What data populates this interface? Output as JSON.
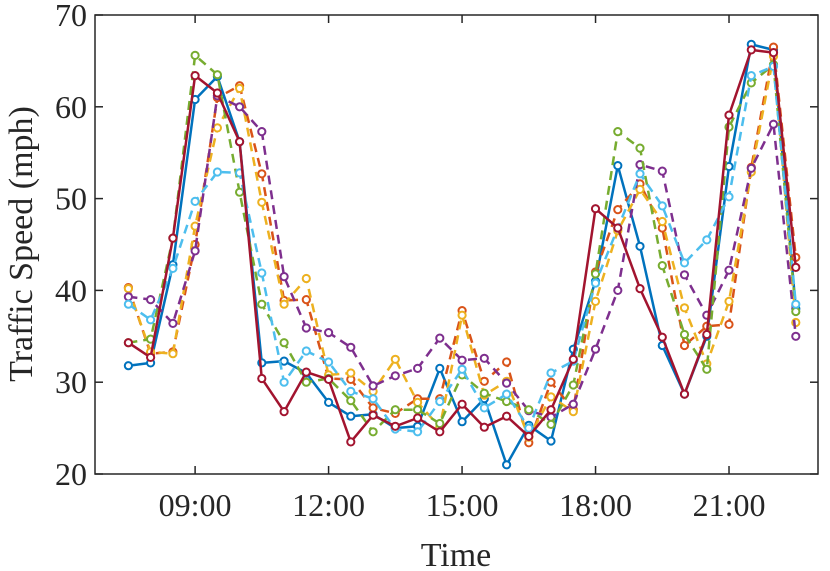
{
  "chart_data": {
    "type": "line",
    "title": "",
    "xlabel": "Time",
    "ylabel": "Traffic Speed (mph)",
    "x": [
      7.5,
      8.0,
      8.5,
      9.0,
      9.5,
      10.0,
      10.5,
      11.0,
      11.5,
      12.0,
      12.5,
      13.0,
      13.5,
      14.0,
      14.5,
      15.0,
      15.5,
      16.0,
      16.5,
      17.0,
      17.5,
      18.0,
      18.5,
      19.0,
      19.5,
      20.0,
      20.5,
      21.0,
      21.5,
      22.0,
      22.5
    ],
    "xlim": [
      6.75,
      23.0
    ],
    "ylim": [
      20,
      70
    ],
    "x_ticks": [
      9,
      12,
      15,
      18,
      21
    ],
    "x_tick_labels": [
      "09:00",
      "12:00",
      "15:00",
      "18:00",
      "21:00"
    ],
    "y_ticks": [
      20,
      30,
      40,
      50,
      60,
      70
    ],
    "y_tick_labels": [
      "20",
      "30",
      "40",
      "50",
      "60",
      "70"
    ],
    "grid": false,
    "legend": "none",
    "series": [
      {
        "color": "#0072BD",
        "dash": "solid",
        "values": [
          31.8,
          32.1,
          42.8,
          60.8,
          63.3,
          56.2,
          32.1,
          32.3,
          31.0,
          27.8,
          26.3,
          26.5,
          25.0,
          25.2,
          31.5,
          25.7,
          28.2,
          21.0,
          25.3,
          23.6,
          33.6,
          41.0,
          53.6,
          44.8,
          34.0,
          28.7,
          35.0,
          53.5,
          66.8,
          66.2,
          38.0
        ]
      },
      {
        "color": "#D95319",
        "dash": "dashed",
        "values": [
          40.3,
          33.1,
          33.3,
          45.0,
          61.0,
          62.3,
          52.7,
          38.9,
          39.0,
          30.4,
          30.3,
          27.2,
          26.6,
          28.2,
          28.2,
          37.8,
          30.1,
          32.2,
          23.4,
          30.0,
          27.0,
          42.0,
          48.8,
          51.6,
          46.8,
          34.0,
          36.1,
          36.3,
          53.4,
          66.5,
          43.6
        ]
      },
      {
        "color": "#EDB120",
        "dash": "dashed",
        "values": [
          40.2,
          33.3,
          33.1,
          47.0,
          57.7,
          62.0,
          49.6,
          38.5,
          41.3,
          30.8,
          31.0,
          29.0,
          32.5,
          27.8,
          25.1,
          37.3,
          28.6,
          30.1,
          24.0,
          28.4,
          26.8,
          38.8,
          46.5,
          51.0,
          47.5,
          38.1,
          32.0,
          38.8,
          52.9,
          65.5,
          36.5
        ]
      },
      {
        "color": "#7E2F8E",
        "dash": "dashed",
        "values": [
          39.3,
          39.0,
          36.4,
          44.3,
          61.2,
          60.0,
          57.3,
          41.5,
          35.9,
          35.4,
          33.8,
          29.6,
          30.7,
          31.5,
          34.8,
          32.4,
          32.6,
          29.9,
          26.9,
          26.2,
          27.6,
          33.6,
          40.0,
          53.7,
          53.0,
          41.7,
          37.3,
          42.2,
          53.3,
          58.1,
          35.0
        ]
      },
      {
        "color": "#77AC30",
        "dash": "dashed",
        "values": [
          34.3,
          34.7,
          45.7,
          65.6,
          63.5,
          50.7,
          38.5,
          34.3,
          30.0,
          30.4,
          28.0,
          24.6,
          27.0,
          27.0,
          25.5,
          30.8,
          28.8,
          27.9,
          27.0,
          25.4,
          29.7,
          41.8,
          57.3,
          55.5,
          42.7,
          35.2,
          31.4,
          57.8,
          62.6,
          64.6,
          37.7
        ]
      },
      {
        "color": "#4DBEEE",
        "dash": "dashed",
        "values": [
          38.5,
          36.8,
          42.4,
          49.7,
          52.9,
          52.8,
          41.9,
          30.0,
          33.4,
          32.2,
          29.0,
          28.2,
          24.9,
          24.6,
          27.9,
          31.4,
          27.2,
          28.7,
          25.0,
          31.0,
          32.3,
          40.8,
          46.8,
          52.7,
          49.2,
          43.0,
          45.5,
          50.2,
          63.4,
          64.4,
          38.5
        ]
      },
      {
        "color": "#A2142F",
        "dash": "solid",
        "values": [
          34.3,
          32.7,
          45.7,
          63.4,
          61.5,
          56.2,
          30.4,
          26.8,
          31.1,
          30.3,
          23.5,
          26.4,
          25.2,
          26.1,
          24.6,
          27.6,
          25.1,
          26.3,
          24.1,
          27.0,
          32.5,
          48.9,
          46.8,
          40.2,
          34.9,
          28.7,
          35.2,
          59.1,
          66.2,
          65.9,
          42.5
        ]
      }
    ]
  }
}
